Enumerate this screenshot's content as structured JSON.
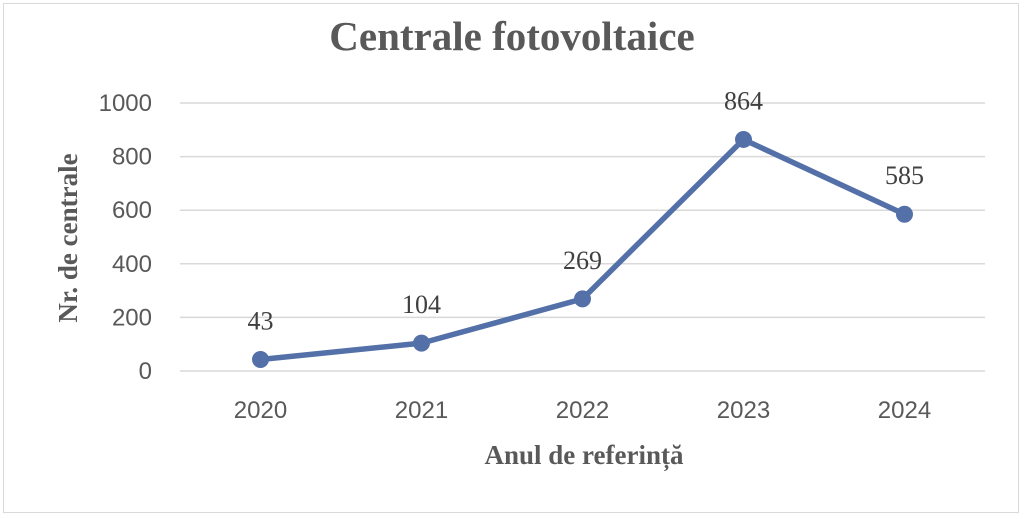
{
  "chart_data": {
    "type": "line",
    "title": "Centrale fotovoltaice",
    "xlabel": "Anul de referință",
    "ylabel": "Nr. de centrale",
    "categories": [
      "2020",
      "2021",
      "2022",
      "2023",
      "2024"
    ],
    "series": [
      {
        "values": [
          43,
          104,
          269,
          864,
          585
        ]
      }
    ],
    "data_labels": [
      "43",
      "104",
      "269",
      "864",
      "585"
    ],
    "ylim": [
      0,
      1000
    ],
    "yticks": [
      0,
      200,
      400,
      600,
      800,
      1000
    ],
    "grid": true,
    "legend": "none",
    "colors": {
      "line": "#5470a8",
      "grid": "#d9d9d9",
      "text": "#595959"
    }
  }
}
